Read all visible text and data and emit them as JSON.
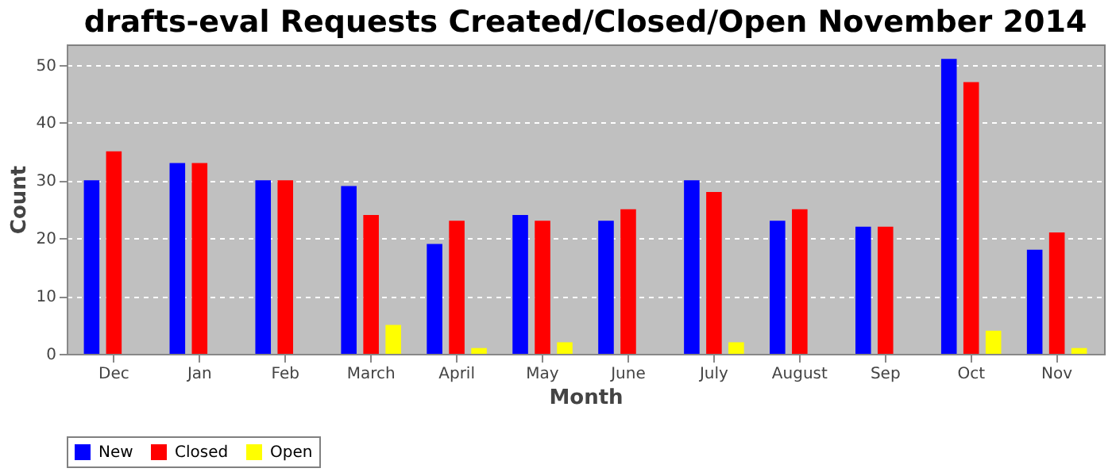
{
  "chart_data": {
    "type": "bar",
    "title": "drafts-eval Requests Created/Closed/Open November 2014",
    "xlabel": "Month",
    "ylabel": "Count",
    "categories": [
      "Dec",
      "Jan",
      "Feb",
      "March",
      "April",
      "May",
      "June",
      "July",
      "August",
      "Sep",
      "Oct",
      "Nov"
    ],
    "series": [
      {
        "name": "New",
        "color": "#0000ff",
        "values": [
          30,
          33,
          30,
          29,
          19,
          24,
          23,
          30,
          23,
          22,
          51,
          18
        ]
      },
      {
        "name": "Closed",
        "color": "#ff0000",
        "values": [
          35,
          33,
          30,
          24,
          23,
          23,
          25,
          28,
          25,
          22,
          47,
          21
        ]
      },
      {
        "name": "Open",
        "color": "#ffff00",
        "values": [
          0,
          0,
          0,
          5,
          1,
          2,
          0,
          2,
          0,
          0,
          4,
          1
        ]
      }
    ],
    "ylim": [
      0,
      53.5
    ],
    "yticks": [
      0,
      10,
      20,
      30,
      40,
      50
    ],
    "grid": "y",
    "legend": "bottom"
  }
}
